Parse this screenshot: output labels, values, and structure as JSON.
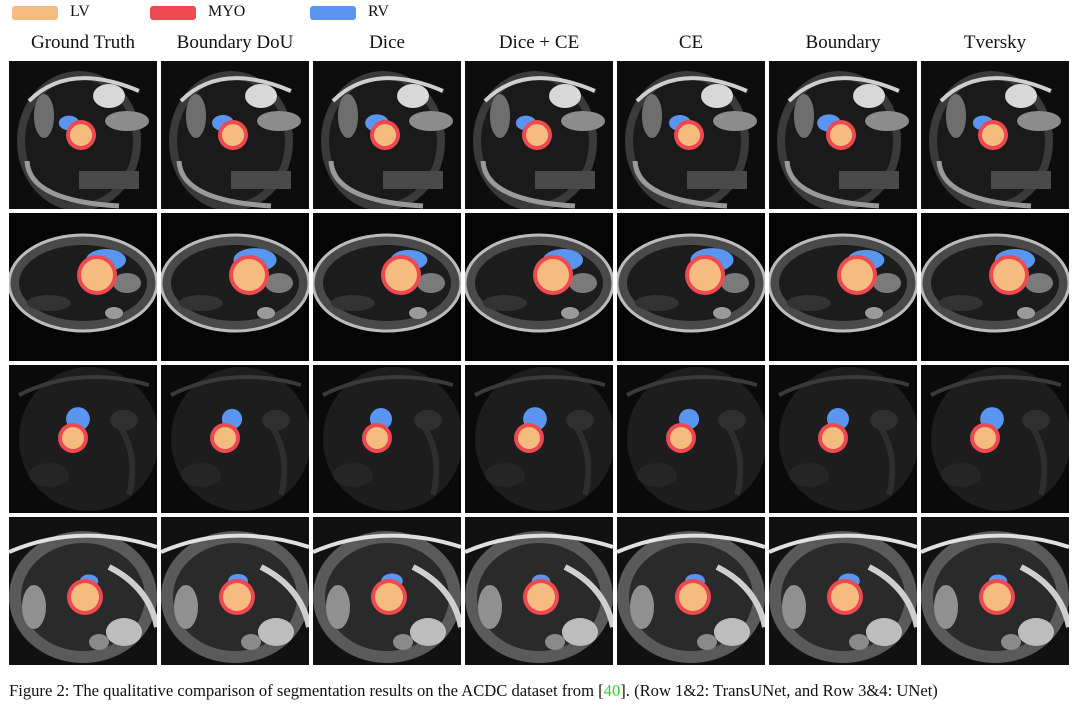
{
  "legend": [
    {
      "label": "LV",
      "color": "#f6bb7f"
    },
    {
      "label": "MYO",
      "color": "#ee4950"
    },
    {
      "label": "RV",
      "color": "#5a95f2"
    }
  ],
  "columns": [
    "Ground Truth",
    "Boundary DoU",
    "Dice",
    "Dice + CE",
    "CE",
    "Boundary",
    "Tversky"
  ],
  "rows": [
    {
      "style": "bright-oblique"
    },
    {
      "style": "wide-short-axis"
    },
    {
      "style": "dark-oblique"
    },
    {
      "style": "high-contrast"
    }
  ],
  "caption": {
    "prefix": "Figure 2: The qualitative comparison of segmentation results on the ACDC dataset from [",
    "citation": "40",
    "suffix": "]. (Row 1&2: TransUNet, and Row 3&4: UNet)"
  }
}
